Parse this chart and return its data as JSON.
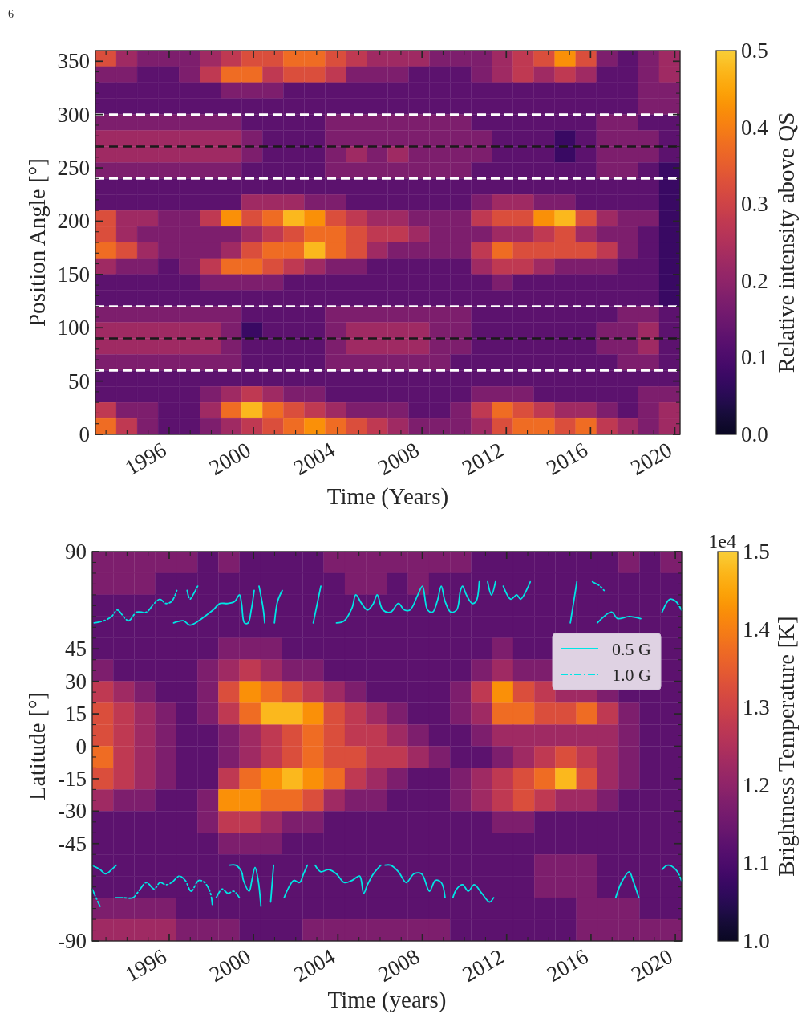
{
  "chart_data": [
    {
      "type": "heatmap",
      "xlabel": "Time (Years)",
      "ylabel": "Position Angle [°]",
      "clabel": "Relative intensity above QS",
      "annotations": [
        "6"
      ],
      "xlim": [
        1992.5,
        2020.25
      ],
      "xticks": [
        {
          "value": 1993,
          "label": null
        },
        {
          "value": 1994,
          "label": null
        },
        {
          "value": 1995,
          "label": null
        },
        1996,
        {
          "value": 1997,
          "label": null
        },
        {
          "value": 1998,
          "label": null
        },
        {
          "value": 1999,
          "label": null
        },
        2000,
        {
          "value": 2001,
          "label": null
        },
        {
          "value": 2002,
          "label": null
        },
        {
          "value": 2003,
          "label": null
        },
        2004,
        {
          "value": 2005,
          "label": null
        },
        {
          "value": 2006,
          "label": null
        },
        {
          "value": 2007,
          "label": null
        },
        2008,
        {
          "value": 2009,
          "label": null
        },
        {
          "value": 2010,
          "label": null
        },
        {
          "value": 2011,
          "label": null
        },
        2012,
        {
          "value": 2013,
          "label": null
        },
        {
          "value": 2014,
          "label": null
        },
        {
          "value": 2015,
          "label": null
        },
        2016,
        {
          "value": 2017,
          "label": null
        },
        {
          "value": 2018,
          "label": null
        },
        {
          "value": 2019,
          "label": null
        },
        2020
      ],
      "ylim": [
        0,
        360
      ],
      "yticks": [
        0,
        {
          "value": 10,
          "label": null
        },
        {
          "value": 20,
          "label": null
        },
        {
          "value": 30,
          "label": null
        },
        {
          "value": 40,
          "label": null
        },
        50,
        {
          "value": 60,
          "label": null
        },
        {
          "value": 70,
          "label": null
        },
        {
          "value": 80,
          "label": null
        },
        {
          "value": 90,
          "label": null
        },
        100,
        {
          "value": 110,
          "label": null
        },
        {
          "value": 120,
          "label": null
        },
        {
          "value": 130,
          "label": null
        },
        {
          "value": 140,
          "label": null
        },
        150,
        {
          "value": 160,
          "label": null
        },
        {
          "value": 170,
          "label": null
        },
        {
          "value": 180,
          "label": null
        },
        {
          "value": 190,
          "label": null
        },
        200,
        {
          "value": 210,
          "label": null
        },
        {
          "value": 220,
          "label": null
        },
        {
          "value": 230,
          "label": null
        },
        {
          "value": 240,
          "label": null
        },
        250,
        {
          "value": 260,
          "label": null
        },
        {
          "value": 270,
          "label": null
        },
        {
          "value": 280,
          "label": null
        },
        {
          "value": 290,
          "label": null
        },
        300,
        {
          "value": 310,
          "label": null
        },
        {
          "value": 320,
          "label": null
        },
        {
          "value": 330,
          "label": null
        },
        {
          "value": 340,
          "label": null
        },
        350
      ],
      "clim": [
        0,
        0.5
      ],
      "cticks": [
        {
          "value": 0,
          "label": "0.0"
        },
        0.1,
        0.2,
        0.3,
        0.4,
        0.5
      ],
      "ref_lines": [
        {
          "axis": "y",
          "value": 60,
          "color": "#ffffff",
          "line_style": "dashed"
        },
        {
          "axis": "y",
          "value": 90,
          "color": "#1a1a1a",
          "line_style": "dashed"
        },
        {
          "axis": "y",
          "value": 120,
          "color": "#ffffff",
          "line_style": "dashed"
        },
        {
          "axis": "y",
          "value": 240,
          "color": "#ffffff",
          "line_style": "dashed"
        },
        {
          "axis": "y",
          "value": 270,
          "color": "#1a1a1a",
          "line_style": "dashed"
        },
        {
          "axis": "y",
          "value": 300,
          "color": "#ffffff",
          "line_style": "dashed"
        }
      ],
      "cells": [
        [
          0.325,
          0.225,
          0.175,
          0.175,
          0.175,
          0.225,
          0.275,
          0.325,
          0.325,
          0.375,
          0.375,
          0.325,
          0.275,
          0.225,
          0.225,
          0.225,
          0.175,
          0.175,
          0.175,
          0.225,
          0.275,
          0.325,
          0.425,
          0.325,
          0.175,
          0.125,
          0.175,
          0.225
        ],
        [
          0.175,
          0.175,
          0.125,
          0.125,
          0.175,
          0.275,
          0.375,
          0.375,
          0.275,
          0.325,
          0.325,
          0.275,
          0.175,
          0.175,
          0.175,
          0.125,
          0.125,
          0.125,
          0.175,
          0.225,
          0.275,
          0.225,
          0.275,
          0.225,
          0.125,
          0.125,
          0.175,
          0.225
        ],
        [
          0.125,
          0.125,
          0.125,
          0.125,
          0.125,
          0.125,
          0.175,
          0.175,
          0.175,
          0.125,
          0.125,
          0.125,
          0.125,
          0.125,
          0.125,
          0.125,
          0.125,
          0.125,
          0.125,
          0.125,
          0.125,
          0.125,
          0.125,
          0.125,
          0.125,
          0.125,
          0.175,
          0.175
        ],
        [
          0.125,
          0.125,
          0.125,
          0.125,
          0.125,
          0.125,
          0.125,
          0.125,
          0.125,
          0.125,
          0.125,
          0.125,
          0.125,
          0.125,
          0.125,
          0.125,
          0.125,
          0.125,
          0.125,
          0.125,
          0.125,
          0.125,
          0.125,
          0.125,
          0.125,
          0.125,
          0.175,
          0.175
        ],
        [
          0.175,
          0.175,
          0.175,
          0.175,
          0.175,
          0.175,
          0.175,
          0.125,
          0.125,
          0.125,
          0.125,
          0.175,
          0.175,
          0.175,
          0.175,
          0.175,
          0.175,
          0.175,
          0.125,
          0.125,
          0.125,
          0.125,
          0.125,
          0.125,
          0.175,
          0.175,
          0.125,
          0.125
        ],
        [
          0.225,
          0.225,
          0.225,
          0.225,
          0.225,
          0.225,
          0.225,
          0.175,
          0.125,
          0.125,
          0.125,
          0.175,
          0.175,
          0.175,
          0.175,
          0.175,
          0.175,
          0.175,
          0.175,
          0.125,
          0.125,
          0.125,
          0.075,
          0.125,
          0.175,
          0.175,
          0.175,
          0.125
        ],
        [
          0.225,
          0.225,
          0.225,
          0.225,
          0.225,
          0.225,
          0.225,
          0.175,
          0.125,
          0.125,
          0.125,
          0.175,
          0.225,
          0.175,
          0.225,
          0.175,
          0.175,
          0.175,
          0.175,
          0.125,
          0.125,
          0.125,
          0.075,
          0.125,
          0.175,
          0.175,
          0.175,
          0.125
        ],
        [
          0.175,
          0.175,
          0.175,
          0.175,
          0.175,
          0.175,
          0.175,
          0.125,
          0.125,
          0.125,
          0.125,
          0.175,
          0.175,
          0.175,
          0.175,
          0.175,
          0.175,
          0.175,
          0.125,
          0.125,
          0.125,
          0.125,
          0.125,
          0.125,
          0.175,
          0.175,
          0.125,
          0.075
        ],
        [
          0.125,
          0.125,
          0.125,
          0.125,
          0.125,
          0.125,
          0.125,
          0.125,
          0.125,
          0.125,
          0.125,
          0.125,
          0.125,
          0.125,
          0.125,
          0.125,
          0.125,
          0.125,
          0.125,
          0.125,
          0.125,
          0.125,
          0.125,
          0.125,
          0.125,
          0.125,
          0.125,
          0.075
        ],
        [
          0.125,
          0.125,
          0.125,
          0.125,
          0.125,
          0.125,
          0.125,
          0.225,
          0.225,
          0.225,
          0.175,
          0.175,
          0.125,
          0.125,
          0.125,
          0.125,
          0.125,
          0.125,
          0.175,
          0.225,
          0.225,
          0.175,
          0.175,
          0.125,
          0.125,
          0.125,
          0.125,
          0.075
        ],
        [
          0.325,
          0.225,
          0.225,
          0.175,
          0.175,
          0.275,
          0.425,
          0.325,
          0.375,
          0.475,
          0.425,
          0.325,
          0.275,
          0.225,
          0.225,
          0.175,
          0.175,
          0.175,
          0.275,
          0.325,
          0.325,
          0.425,
          0.475,
          0.325,
          0.225,
          0.175,
          0.175,
          0.075
        ],
        [
          0.325,
          0.225,
          0.175,
          0.175,
          0.175,
          0.175,
          0.175,
          0.225,
          0.275,
          0.325,
          0.375,
          0.375,
          0.325,
          0.275,
          0.275,
          0.225,
          0.175,
          0.175,
          0.175,
          0.225,
          0.225,
          0.275,
          0.325,
          0.225,
          0.175,
          0.175,
          0.125,
          0.075
        ],
        [
          0.375,
          0.325,
          0.225,
          0.175,
          0.175,
          0.175,
          0.225,
          0.325,
          0.375,
          0.375,
          0.475,
          0.375,
          0.325,
          0.225,
          0.175,
          0.175,
          0.175,
          0.175,
          0.275,
          0.375,
          0.325,
          0.325,
          0.325,
          0.325,
          0.275,
          0.175,
          0.125,
          0.075
        ],
        [
          0.225,
          0.175,
          0.175,
          0.125,
          0.175,
          0.275,
          0.375,
          0.375,
          0.325,
          0.275,
          0.225,
          0.175,
          0.175,
          0.125,
          0.125,
          0.125,
          0.125,
          0.125,
          0.225,
          0.275,
          0.275,
          0.225,
          0.175,
          0.175,
          0.175,
          0.125,
          0.125,
          0.075
        ],
        [
          0.125,
          0.125,
          0.125,
          0.125,
          0.125,
          0.175,
          0.175,
          0.175,
          0.175,
          0.125,
          0.125,
          0.125,
          0.125,
          0.125,
          0.125,
          0.125,
          0.125,
          0.125,
          0.125,
          0.175,
          0.125,
          0.125,
          0.125,
          0.125,
          0.125,
          0.125,
          0.125,
          0.075
        ],
        [
          0.125,
          0.125,
          0.125,
          0.125,
          0.125,
          0.125,
          0.125,
          0.125,
          0.125,
          0.125,
          0.125,
          0.125,
          0.125,
          0.125,
          0.125,
          0.125,
          0.125,
          0.125,
          0.125,
          0.125,
          0.125,
          0.125,
          0.125,
          0.125,
          0.125,
          0.125,
          0.125,
          0.075
        ],
        [
          0.175,
          0.175,
          0.175,
          0.175,
          0.175,
          0.175,
          0.175,
          0.125,
          0.125,
          0.125,
          0.125,
          0.175,
          0.175,
          0.175,
          0.175,
          0.175,
          0.175,
          0.175,
          0.125,
          0.125,
          0.125,
          0.125,
          0.125,
          0.125,
          0.125,
          0.175,
          0.175,
          0.125
        ],
        [
          0.225,
          0.225,
          0.225,
          0.225,
          0.225,
          0.225,
          0.175,
          0.075,
          0.125,
          0.125,
          0.125,
          0.175,
          0.225,
          0.225,
          0.225,
          0.225,
          0.175,
          0.175,
          0.125,
          0.125,
          0.125,
          0.125,
          0.125,
          0.125,
          0.175,
          0.175,
          0.225,
          0.125
        ],
        [
          0.225,
          0.225,
          0.225,
          0.225,
          0.225,
          0.225,
          0.175,
          0.125,
          0.125,
          0.125,
          0.125,
          0.175,
          0.225,
          0.225,
          0.225,
          0.225,
          0.175,
          0.175,
          0.125,
          0.125,
          0.125,
          0.125,
          0.125,
          0.125,
          0.175,
          0.175,
          0.225,
          0.125
        ],
        [
          0.175,
          0.175,
          0.175,
          0.175,
          0.175,
          0.175,
          0.175,
          0.125,
          0.125,
          0.125,
          0.125,
          0.175,
          0.175,
          0.175,
          0.175,
          0.175,
          0.175,
          0.125,
          0.125,
          0.125,
          0.125,
          0.125,
          0.125,
          0.125,
          0.125,
          0.175,
          0.175,
          0.125
        ],
        [
          0.125,
          0.125,
          0.125,
          0.125,
          0.125,
          0.125,
          0.125,
          0.125,
          0.125,
          0.125,
          0.125,
          0.125,
          0.125,
          0.125,
          0.125,
          0.125,
          0.125,
          0.125,
          0.125,
          0.125,
          0.125,
          0.125,
          0.125,
          0.125,
          0.125,
          0.125,
          0.125,
          0.125
        ],
        [
          0.125,
          0.125,
          0.125,
          0.125,
          0.125,
          0.175,
          0.225,
          0.275,
          0.225,
          0.175,
          0.175,
          0.125,
          0.125,
          0.125,
          0.125,
          0.125,
          0.125,
          0.125,
          0.175,
          0.175,
          0.175,
          0.125,
          0.125,
          0.125,
          0.125,
          0.125,
          0.175,
          0.175
        ],
        [
          0.275,
          0.175,
          0.175,
          0.125,
          0.125,
          0.225,
          0.375,
          0.475,
          0.375,
          0.325,
          0.275,
          0.225,
          0.175,
          0.175,
          0.175,
          0.125,
          0.125,
          0.175,
          0.275,
          0.375,
          0.325,
          0.275,
          0.225,
          0.225,
          0.175,
          0.125,
          0.175,
          0.225
        ],
        [
          0.375,
          0.275,
          0.175,
          0.125,
          0.125,
          0.175,
          0.225,
          0.275,
          0.325,
          0.375,
          0.425,
          0.375,
          0.325,
          0.275,
          0.225,
          0.175,
          0.175,
          0.175,
          0.225,
          0.325,
          0.375,
          0.375,
          0.325,
          0.375,
          0.275,
          0.225,
          0.175,
          0.225
        ]
      ]
    },
    {
      "type": "heatmap",
      "xlabel": "Time (years)",
      "ylabel": "Latitude [°]",
      "clabel": "Brightness Temperature [K]",
      "annotations": [
        "1e4"
      ],
      "xlim": [
        1992.35,
        2020.3
      ],
      "xticks": [
        {
          "value": 1993,
          "label": null
        },
        {
          "value": 1994,
          "label": null
        },
        {
          "value": 1995,
          "label": null
        },
        1996,
        {
          "value": 1997,
          "label": null
        },
        {
          "value": 1998,
          "label": null
        },
        {
          "value": 1999,
          "label": null
        },
        2000,
        {
          "value": 2001,
          "label": null
        },
        {
          "value": 2002,
          "label": null
        },
        {
          "value": 2003,
          "label": null
        },
        2004,
        {
          "value": 2005,
          "label": null
        },
        {
          "value": 2006,
          "label": null
        },
        {
          "value": 2007,
          "label": null
        },
        2008,
        {
          "value": 2009,
          "label": null
        },
        {
          "value": 2010,
          "label": null
        },
        {
          "value": 2011,
          "label": null
        },
        2012,
        {
          "value": 2013,
          "label": null
        },
        {
          "value": 2014,
          "label": null
        },
        {
          "value": 2015,
          "label": null
        },
        2016,
        {
          "value": 2017,
          "label": null
        },
        {
          "value": 2018,
          "label": null
        },
        {
          "value": 2019,
          "label": null
        },
        2020
      ],
      "ylim": [
        -90,
        90
      ],
      "yticks": [
        -90,
        {
          "value": -85,
          "label": null
        },
        {
          "value": -80,
          "label": null
        },
        {
          "value": -75,
          "label": null
        },
        {
          "value": -70,
          "label": null
        },
        {
          "value": -65,
          "label": null
        },
        {
          "value": -60,
          "label": null
        },
        {
          "value": -55,
          "label": null
        },
        {
          "value": -50,
          "label": null
        },
        -45,
        {
          "value": -40,
          "label": null
        },
        {
          "value": -35,
          "label": null
        },
        -30,
        {
          "value": -25,
          "label": null
        },
        {
          "value": -20,
          "label": null
        },
        -15,
        {
          "value": -10,
          "label": null
        },
        {
          "value": -5,
          "label": null
        },
        0,
        {
          "value": 5,
          "label": null
        },
        {
          "value": 10,
          "label": null
        },
        15,
        {
          "value": 20,
          "label": null
        },
        {
          "value": 25,
          "label": null
        },
        30,
        {
          "value": 35,
          "label": null
        },
        {
          "value": 40,
          "label": null
        },
        45,
        {
          "value": 50,
          "label": null
        },
        {
          "value": 55,
          "label": null
        },
        {
          "value": 60,
          "label": null
        },
        {
          "value": 65,
          "label": null
        },
        {
          "value": 70,
          "label": null
        },
        {
          "value": 75,
          "label": null
        },
        {
          "value": 80,
          "label": null
        },
        {
          "value": 85,
          "label": null
        },
        90
      ],
      "clim": [
        1,
        1.5
      ],
      "cticks": [
        {
          "value": 1,
          "label": "1.0"
        },
        1.1,
        1.2,
        1.3,
        1.4,
        1.5
      ],
      "legend": "top right",
      "series": [
        {
          "name": "0.5 G",
          "type": "line",
          "color": "#00e5e5",
          "line_style": "solid",
          "x": [
            1996.21,
            1996.67,
            1996.98,
            1997.4,
            1997.68,
            1998.08,
            1998.41,
            1998.78,
            1999.11,
            1999.33,
            1999.43,
            1999.57,
            1999.74,
            1999.89,
            2000.03,
            null,
            2000.26,
            2000.45,
            2000.53,
            null,
            2000.99,
            2001.14,
            2001.36,
            null,
            2002.83,
            2003.19,
            null,
            2003.93,
            2004.3,
            2004.67,
            2004.85,
            2005.12,
            2005.4,
            2005.68,
            2005.86,
            2006.13,
            2006.5,
            2006.87,
            2007.15,
            2007.42,
            2007.79,
            2008.01,
            2008.25,
            2008.49,
            2008.71,
            2008.9,
            2009.08,
            2009.35,
            2009.63,
            2009.81,
            2009.91,
            2010.09,
            2010.37,
            2010.55,
            2010.7,
            null,
            2011.1,
            2011.28,
            2011.47,
            null,
            2011.84,
            2012.2,
            2012.48,
            2012.66,
            2013.12,
            null,
            2015.02,
            2015.33,
            null,
            2016.3,
            2016.98,
            2017.26,
            2017.81,
            2018.36,
            null,
            2019.37,
            2019.74,
            2020.02,
            2020.29
          ],
          "values": [
            57,
            58,
            56,
            58,
            60,
            63,
            66,
            66,
            67,
            70,
            66,
            57,
            57,
            63,
            72,
            null,
            74,
            64,
            57,
            null,
            57,
            67,
            72,
            null,
            57,
            74,
            null,
            57,
            58,
            64,
            70,
            66,
            63,
            66,
            70,
            63,
            62,
            66,
            63,
            63,
            70,
            74,
            63,
            62,
            67,
            74,
            67,
            62,
            63,
            72,
            74,
            70,
            66,
            67,
            76,
            null,
            76,
            70,
            76,
            null,
            74,
            68,
            70,
            68,
            76,
            null,
            57,
            76,
            null,
            57,
            62,
            59,
            60,
            59,
            null,
            62,
            68,
            67,
            63
          ]
        },
        {
          "type": "line",
          "color": "#00e5e5",
          "line_style": "solid",
          "x": [
            1992.35,
            1992.72,
            1992.99,
            1993.27,
            1993.49,
            null,
            1998.87,
            1999.15,
            1999.43,
            1999.52,
            1999.79,
            1999.92,
            2000.07,
            2000.22,
            2000.35,
            null,
            2000.81,
            2000.95,
            null,
            2001.45,
            2001.63,
            2001.91,
            2002.18,
            2002.37,
            2002.55,
            null,
            2002.92,
            2003.19,
            2003.56,
            2003.93,
            2004.3,
            2004.67,
            2005.03,
            2005.22,
            2005.4,
            2005.68,
            2006.04,
            null,
            2006.23,
            2006.5,
            2006.87,
            2007.24,
            2007.6,
            2007.97,
            2008.34,
            2008.62,
            2008.9,
            2009.08,
            null,
            2009.45,
            2009.63,
            2009.91,
            2010.18,
            2010.46,
            2010.82,
            2011.19,
            2011.38,
            null,
            2017.17,
            2017.44,
            2017.81,
            2017.99,
            2018.27,
            null,
            2019.37,
            2019.65,
            2020.02,
            2020.29
          ],
          "values": [
            -55,
            -57,
            -59,
            -57,
            -55,
            null,
            -55,
            -55,
            -58,
            -62,
            -67,
            -62,
            -56,
            -62,
            -74,
            null,
            -72,
            -55,
            null,
            -70,
            -66,
            -62,
            -63,
            -59,
            -55,
            null,
            -55,
            -58,
            -57,
            -59,
            -63,
            -62,
            -60,
            -68,
            -64,
            -59,
            -55,
            null,
            -55,
            -55,
            -58,
            -63,
            -59,
            -59,
            -67,
            -62,
            -63,
            -70,
            null,
            -70,
            -66,
            -64,
            -67,
            -64,
            -68,
            -72,
            -70,
            null,
            -70,
            -63,
            -58,
            -62,
            -70,
            null,
            -57,
            -55,
            -57,
            -62
          ]
        },
        {
          "name": "1.0 G",
          "type": "line",
          "color": "#00e5e5",
          "line_style": "dashdot",
          "x": [
            1992.44,
            1992.9,
            1993.27,
            1993.54,
            1993.91,
            1994.09,
            1994.46,
            1994.92,
            1995.29,
            1995.56,
            1995.84,
            1996.12,
            1996.36,
            null,
            1996.85,
            1996.98,
            1997.13,
            1997.35,
            null,
            2016.07,
            2016.43,
            2016.62
          ],
          "values": [
            57,
            58,
            60,
            63,
            59,
            58,
            62,
            62,
            66,
            68,
            66,
            67,
            72,
            null,
            72,
            68,
            70,
            74,
            null,
            76,
            74,
            72
          ]
        },
        {
          "type": "line",
          "color": "#00e5e5",
          "line_style": "dashdot",
          "x": [
            1992.35,
            1992.53,
            1992.72,
            null,
            1993.45,
            1993.64,
            1993.82,
            1994.28,
            1994.55,
            1994.92,
            1995.29,
            1995.56,
            1995.84,
            1996.12,
            1996.48,
            1996.76,
            1997.04,
            1997.4,
            1997.68,
            1997.96,
            1998.05,
            null,
            1998.23,
            1998.51,
            1998.78,
            1999.06,
            1999.33
          ],
          "values": [
            -66,
            -70,
            -74,
            null,
            -70,
            -70,
            -70,
            -70,
            -67,
            -63,
            -66,
            -63,
            -64,
            -63,
            -60,
            -62,
            -67,
            -62,
            -63,
            -68,
            -74,
            null,
            -70,
            -66,
            -68,
            -67,
            -70
          ]
        }
      ],
      "cells": [
        [
          1.175,
          1.175,
          1.175,
          1.175,
          1.175,
          1.125,
          1.175,
          1.125,
          1.125,
          1.125,
          1.125,
          1.175,
          1.175,
          1.175,
          1.175,
          1.175,
          1.175,
          1.175,
          1.125,
          1.125,
          1.125,
          1.125,
          1.125,
          1.125,
          1.125,
          1.175,
          1.125,
          1.175
        ],
        [
          1.175,
          1.175,
          1.175,
          1.125,
          1.125,
          1.125,
          1.125,
          1.125,
          1.125,
          1.125,
          1.125,
          1.125,
          1.175,
          1.175,
          1.125,
          1.175,
          1.125,
          1.125,
          1.125,
          1.125,
          1.125,
          1.125,
          1.125,
          1.125,
          1.125,
          1.125,
          1.125,
          1.125
        ],
        [
          1.125,
          1.125,
          1.125,
          1.125,
          1.125,
          1.125,
          1.125,
          1.125,
          1.125,
          1.125,
          1.125,
          1.125,
          1.125,
          1.125,
          1.125,
          1.125,
          1.125,
          1.125,
          1.125,
          1.125,
          1.125,
          1.125,
          1.125,
          1.125,
          1.125,
          1.125,
          1.125,
          1.125
        ],
        [
          1.125,
          1.125,
          1.125,
          1.125,
          1.125,
          1.125,
          1.125,
          1.125,
          1.125,
          1.125,
          1.125,
          1.125,
          1.125,
          1.125,
          1.125,
          1.125,
          1.125,
          1.125,
          1.125,
          1.125,
          1.125,
          1.125,
          1.125,
          1.125,
          1.125,
          1.125,
          1.125,
          1.125
        ],
        [
          1.125,
          1.125,
          1.125,
          1.125,
          1.125,
          1.125,
          1.175,
          1.175,
          1.175,
          1.125,
          1.125,
          1.125,
          1.125,
          1.125,
          1.125,
          1.125,
          1.125,
          1.125,
          1.125,
          1.175,
          1.125,
          1.125,
          null,
          null,
          null,
          null,
          null,
          1.125
        ],
        [
          1.175,
          1.125,
          1.125,
          1.125,
          1.125,
          1.175,
          1.225,
          1.275,
          1.225,
          1.175,
          1.175,
          1.125,
          1.125,
          1.125,
          1.125,
          1.125,
          1.125,
          1.125,
          1.175,
          1.225,
          1.175,
          1.175,
          null,
          null,
          null,
          null,
          null,
          1.125
        ],
        [
          1.275,
          1.225,
          1.175,
          1.125,
          1.125,
          1.175,
          1.325,
          1.425,
          1.375,
          1.325,
          1.275,
          1.225,
          1.175,
          1.125,
          1.125,
          1.125,
          1.125,
          1.175,
          1.275,
          1.425,
          1.325,
          1.275,
          1.225,
          1.225,
          1.175,
          1.125,
          1.125,
          1.125
        ],
        [
          1.325,
          1.275,
          1.225,
          1.175,
          1.125,
          1.175,
          1.275,
          1.375,
          1.475,
          1.475,
          1.425,
          1.325,
          1.275,
          1.225,
          1.175,
          1.125,
          1.125,
          1.175,
          1.225,
          1.375,
          1.375,
          1.325,
          1.325,
          1.375,
          1.275,
          1.175,
          1.125,
          1.125
        ],
        [
          1.325,
          1.275,
          1.225,
          1.175,
          1.125,
          1.125,
          1.175,
          1.225,
          1.275,
          1.325,
          1.375,
          1.325,
          1.275,
          1.275,
          1.225,
          1.175,
          1.125,
          1.125,
          1.175,
          1.225,
          1.225,
          1.225,
          1.225,
          1.225,
          1.225,
          1.175,
          1.125,
          1.125
        ],
        [
          1.375,
          1.275,
          1.225,
          1.175,
          1.125,
          1.125,
          1.175,
          1.225,
          1.275,
          1.325,
          1.375,
          1.325,
          1.325,
          1.275,
          1.275,
          1.225,
          1.175,
          1.125,
          1.125,
          1.175,
          1.225,
          1.275,
          1.325,
          1.275,
          1.225,
          1.175,
          1.125,
          1.125
        ],
        [
          1.325,
          1.275,
          1.225,
          1.175,
          1.125,
          1.125,
          1.275,
          1.375,
          1.425,
          1.475,
          1.425,
          1.375,
          1.275,
          1.225,
          1.175,
          1.125,
          1.125,
          1.175,
          1.225,
          1.275,
          1.325,
          1.375,
          1.475,
          1.325,
          1.225,
          1.175,
          1.125,
          1.125
        ],
        [
          1.225,
          1.175,
          1.175,
          1.125,
          1.125,
          1.175,
          1.425,
          1.425,
          1.375,
          1.375,
          1.325,
          1.225,
          1.175,
          1.175,
          1.125,
          1.125,
          1.125,
          1.175,
          1.225,
          1.275,
          1.325,
          1.275,
          1.225,
          1.225,
          1.175,
          1.125,
          1.125,
          1.125
        ],
        [
          1.125,
          1.125,
          1.125,
          1.125,
          1.125,
          1.175,
          1.275,
          1.275,
          1.225,
          1.175,
          1.175,
          1.125,
          1.125,
          1.125,
          1.125,
          1.125,
          1.125,
          1.125,
          1.125,
          1.175,
          1.175,
          1.125,
          1.125,
          1.125,
          1.125,
          1.125,
          1.125,
          1.125
        ],
        [
          1.125,
          1.125,
          1.125,
          1.125,
          1.125,
          1.125,
          1.175,
          1.175,
          1.175,
          1.125,
          1.125,
          1.125,
          1.125,
          1.125,
          1.125,
          1.125,
          1.125,
          1.125,
          1.125,
          1.125,
          1.125,
          1.125,
          1.125,
          1.125,
          1.125,
          1.125,
          1.125,
          1.125
        ],
        [
          1.125,
          1.125,
          1.125,
          1.125,
          1.125,
          1.125,
          1.125,
          1.125,
          1.125,
          1.125,
          1.125,
          1.125,
          1.125,
          1.125,
          1.125,
          1.125,
          1.125,
          1.125,
          1.125,
          1.125,
          1.125,
          1.175,
          1.175,
          1.175,
          1.125,
          1.125,
          1.125,
          1.125
        ],
        [
          1.125,
          1.125,
          1.125,
          1.125,
          1.125,
          1.125,
          1.125,
          1.125,
          1.125,
          1.125,
          1.125,
          1.125,
          1.125,
          1.125,
          1.125,
          1.125,
          1.125,
          1.125,
          1.125,
          1.125,
          1.125,
          1.175,
          1.175,
          1.175,
          1.125,
          1.125,
          1.125,
          1.125
        ],
        [
          1.175,
          1.175,
          1.175,
          1.175,
          1.125,
          1.125,
          1.125,
          1.125,
          1.125,
          1.125,
          1.125,
          1.125,
          1.125,
          1.125,
          1.125,
          1.125,
          1.125,
          1.125,
          1.125,
          1.125,
          1.125,
          1.125,
          1.125,
          1.175,
          1.175,
          1.175,
          1.125,
          1.125
        ],
        [
          1.225,
          1.225,
          1.225,
          1.225,
          1.175,
          1.175,
          1.175,
          1.125,
          1.125,
          1.125,
          1.175,
          1.175,
          1.175,
          1.175,
          1.175,
          1.175,
          1.175,
          1.125,
          1.125,
          1.125,
          1.125,
          1.125,
          1.125,
          1.175,
          1.175,
          1.175,
          1.175,
          1.175
        ]
      ]
    }
  ]
}
